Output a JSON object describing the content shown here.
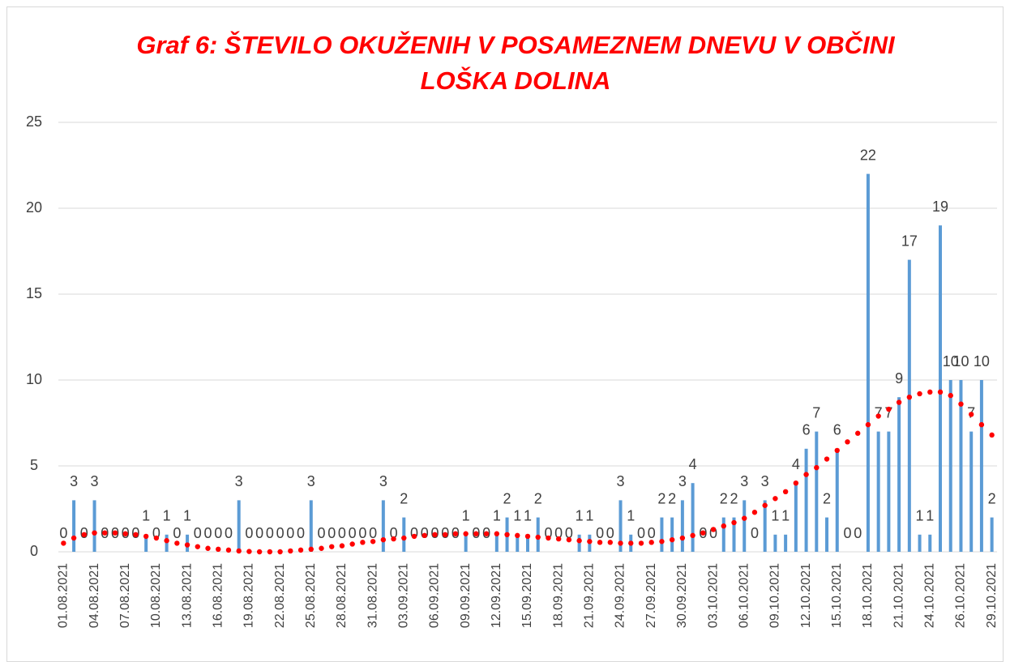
{
  "chart_data": {
    "type": "bar",
    "title_lines": [
      "Graf 6: ŠTEVILO OKUŽENIH V POSAMEZNEM DNEVU V OBČINI",
      "LOŠKA DOLINA"
    ],
    "categories": [
      "01.08.2021",
      null,
      null,
      "04.08.2021",
      null,
      null,
      "07.08.2021",
      null,
      null,
      "10.08.2021",
      null,
      null,
      "13.08.2021",
      null,
      null,
      "16.08.2021",
      null,
      null,
      "19.08.2021",
      null,
      null,
      "22.08.2021",
      null,
      null,
      "25.08.2021",
      null,
      null,
      "28.08.2021",
      null,
      null,
      "31.08.2021",
      null,
      null,
      "03.09.2021",
      null,
      null,
      "06.09.2021",
      null,
      null,
      "09.09.2021",
      null,
      null,
      "12.09.2021",
      null,
      null,
      "15.09.2021",
      null,
      null,
      "18.09.2021",
      null,
      null,
      "21.09.2021",
      null,
      null,
      "24.09.2021",
      null,
      null,
      "27.09.2021",
      null,
      null,
      "30.09.2021",
      null,
      null,
      "03.10.2021",
      null,
      null,
      "06.10.2021",
      null,
      null,
      "09.10.2021",
      null,
      null,
      "12.10.2021",
      null,
      null,
      "15.10.2021",
      null,
      null,
      "18.10.2021",
      null,
      null,
      "21.10.2021",
      null,
      null,
      "24.10.2021",
      null,
      null,
      "26.10.2021",
      null,
      null,
      "29.10.2021"
    ],
    "values": [
      0,
      3,
      0,
      3,
      0,
      0,
      0,
      0,
      1,
      0,
      1,
      0,
      1,
      0,
      0,
      0,
      0,
      3,
      0,
      0,
      0,
      0,
      0,
      0,
      3,
      0,
      0,
      0,
      0,
      0,
      0,
      3,
      0,
      2,
      0,
      0,
      0,
      0,
      0,
      1,
      0,
      0,
      1,
      2,
      1,
      1,
      2,
      0,
      0,
      0,
      1,
      1,
      0,
      0,
      3,
      1,
      0,
      0,
      2,
      2,
      3,
      4,
      0,
      0,
      2,
      2,
      3,
      0,
      3,
      1,
      1,
      4,
      6,
      7,
      2,
      6,
      0,
      0,
      22,
      7,
      7,
      9,
      17,
      1,
      1,
      19,
      10,
      10,
      7,
      10,
      2
    ],
    "color": "#5b9bd5",
    "trendline": {
      "color": "#ff0000",
      "values": [
        0.5,
        0.8,
        1.0,
        1.1,
        1.1,
        1.1,
        1.05,
        1.0,
        0.9,
        0.8,
        0.65,
        0.5,
        0.4,
        0.3,
        0.2,
        0.15,
        0.1,
        0.05,
        0.02,
        0,
        0,
        0,
        0.05,
        0.1,
        0.15,
        0.2,
        0.3,
        0.35,
        0.45,
        0.55,
        0.6,
        0.7,
        0.75,
        0.8,
        0.9,
        0.95,
        1.0,
        1.0,
        1.05,
        1.05,
        1.05,
        1.05,
        1.05,
        1.0,
        0.95,
        0.9,
        0.85,
        0.8,
        0.75,
        0.7,
        0.65,
        0.6,
        0.55,
        0.55,
        0.5,
        0.5,
        0.5,
        0.55,
        0.6,
        0.7,
        0.8,
        0.95,
        1.1,
        1.3,
        1.5,
        1.7,
        1.95,
        2.3,
        2.7,
        3.1,
        3.5,
        4.0,
        4.5,
        4.9,
        5.4,
        5.9,
        6.4,
        6.9,
        7.4,
        7.9,
        8.3,
        8.7,
        9.0,
        9.2,
        9.3,
        9.3,
        9.1,
        8.6,
        8.0,
        7.4,
        6.8
      ]
    },
    "ylim": [
      0,
      25
    ],
    "yticks": [
      0,
      5,
      10,
      15,
      20,
      25
    ],
    "grid": true
  }
}
